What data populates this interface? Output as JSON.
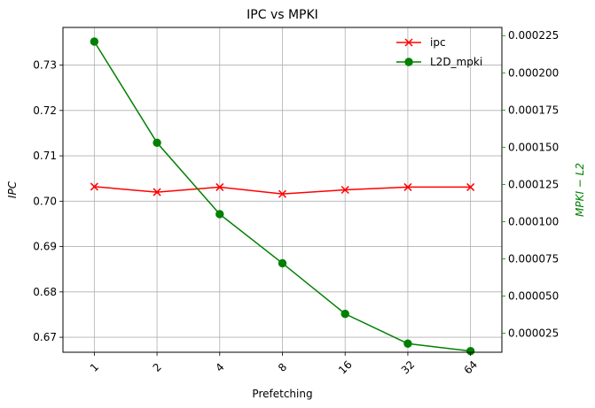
{
  "chart_data": {
    "type": "line",
    "title": "IPC vs MPKI",
    "xlabel": "Prefetching",
    "ylabel_left": "IPC",
    "ylabel_right": "MPKI − L2",
    "categories": [
      "1",
      "2",
      "4",
      "8",
      "16",
      "32",
      "64"
    ],
    "left_axis": {
      "ylim": [
        0.6667,
        0.7383
      ],
      "ticks": [
        0.67,
        0.68,
        0.69,
        0.7,
        0.71,
        0.72,
        0.73
      ],
      "tick_labels": [
        "0.67",
        "0.68",
        "0.69",
        "0.70",
        "0.71",
        "0.72",
        "0.73"
      ],
      "color": "#000000"
    },
    "right_axis": {
      "ylim": [
        1.22e-05,
        0.0002305
      ],
      "ticks": [
        2.5e-05,
        5e-05,
        7.5e-05,
        0.0001,
        0.000125,
        0.00015,
        0.000175,
        0.0002,
        0.000225
      ],
      "tick_labels": [
        "0.000025",
        "0.000050",
        "0.000075",
        "0.000100",
        "0.000125",
        "0.000150",
        "0.000175",
        "0.000200",
        "0.000225"
      ],
      "color": "#008000"
    },
    "series": [
      {
        "name": "ipc",
        "axis": "left",
        "color": "#ff0000",
        "marker": "x",
        "values": [
          0.7032,
          0.702,
          0.7031,
          0.7016,
          0.7025,
          0.7031,
          0.7031
        ]
      },
      {
        "name": "L2D_mpki",
        "axis": "right",
        "color": "#008000",
        "marker": "o",
        "values": [
          0.000221,
          0.000153,
          0.000105,
          7.2e-05,
          3.8e-05,
          1.8e-05,
          1.3e-05
        ]
      }
    ],
    "grid": true,
    "legend": "top-right"
  }
}
